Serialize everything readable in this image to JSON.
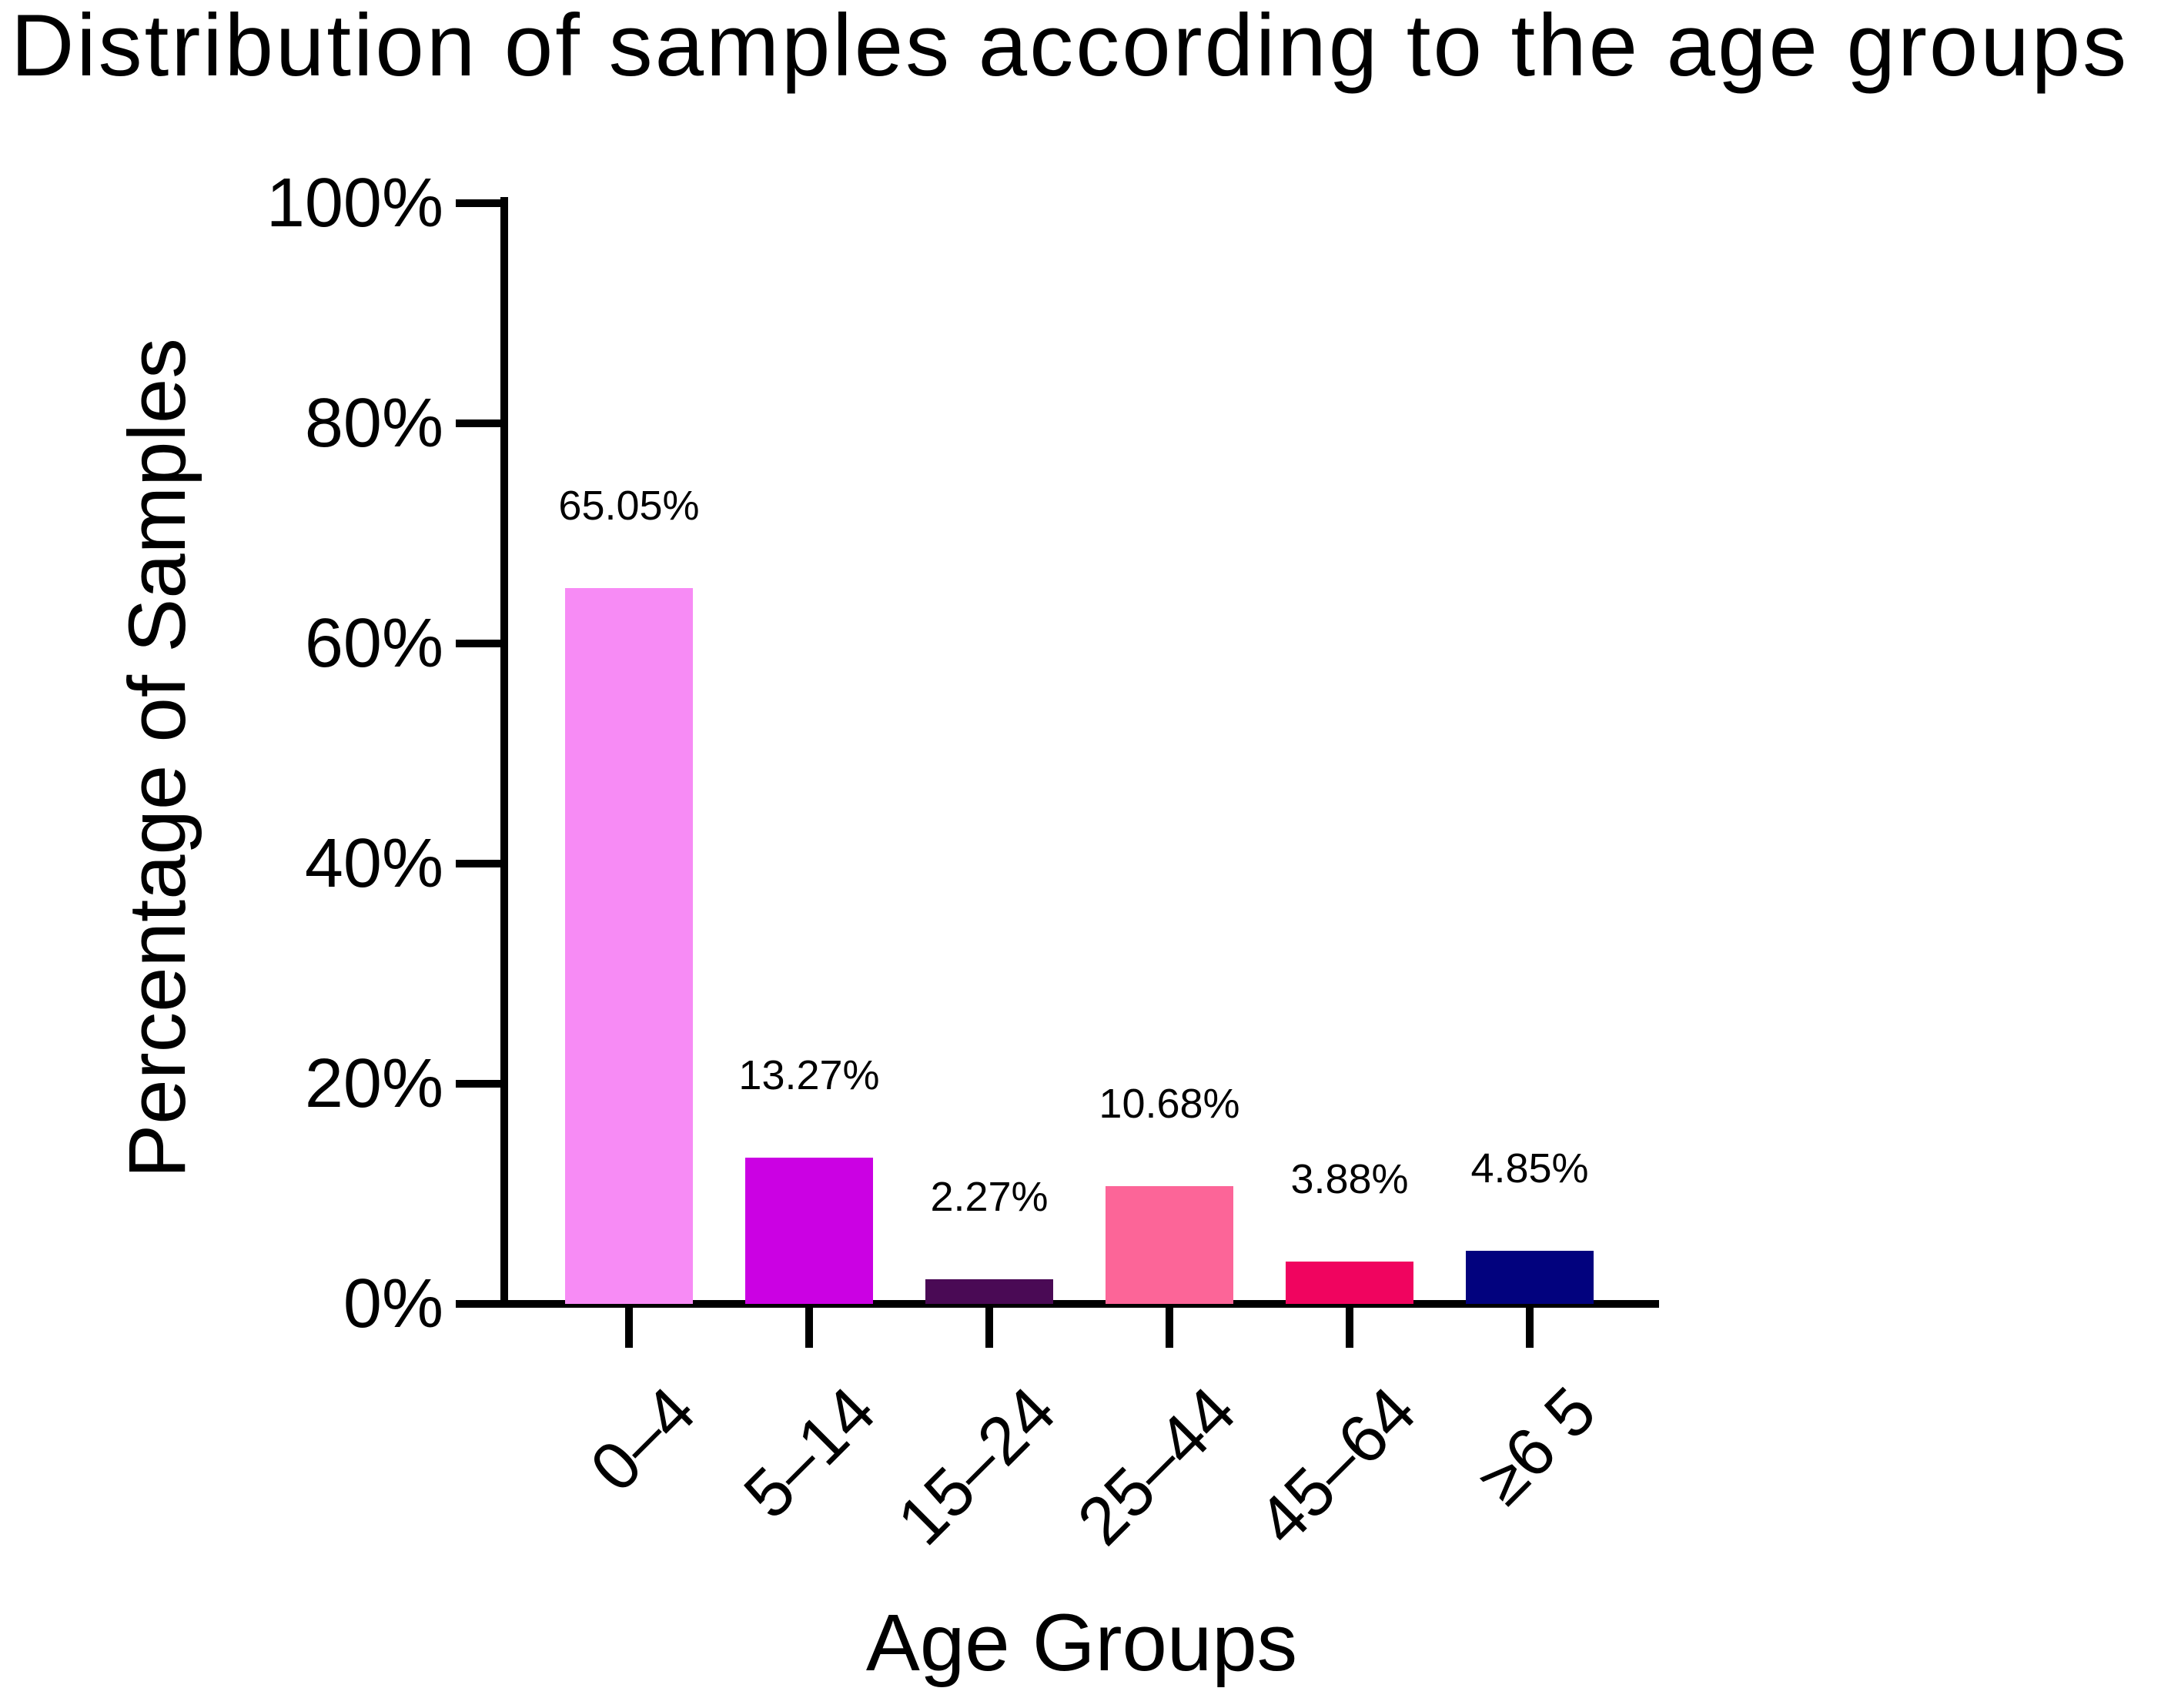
{
  "chart_data": {
    "type": "bar",
    "title": "Distribution of samples according to the age groups",
    "xlabel": "Age Groups",
    "ylabel": "Percentage of Samples",
    "categories": [
      "0–4",
      "5–14",
      "15–24",
      "25–44",
      "45–64",
      "≥6 5"
    ],
    "values": [
      65.05,
      13.27,
      2.27,
      10.68,
      3.88,
      4.85
    ],
    "value_labels": [
      "65.05%",
      "13.27%",
      "2.27%",
      "10.68%",
      "3.88%",
      "4.85%"
    ],
    "bar_colors": [
      "#F78BF5",
      "#CB01E3",
      "#4A0A55",
      "#FC6598",
      "#F0045F",
      "#02027E"
    ],
    "ylim": [
      0,
      100
    ],
    "y_tick_values": [
      0,
      20,
      40,
      60,
      80,
      100
    ],
    "y_tick_labels": [
      "0%",
      "20%",
      "40%",
      "60%",
      "80%",
      "100%"
    ],
    "x_tick_rotation_deg": 45,
    "grid": false,
    "legend": null,
    "axis_color": "#000000",
    "background_color": "#FFFFFF",
    "text_color": "#000000"
  }
}
